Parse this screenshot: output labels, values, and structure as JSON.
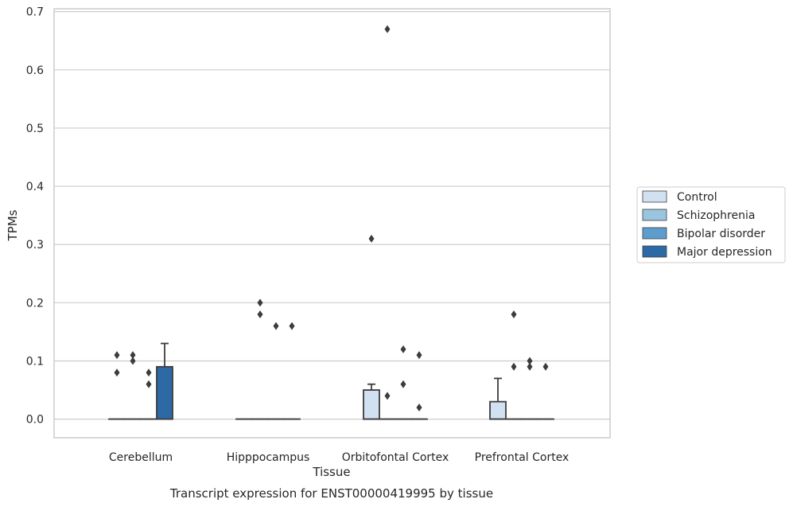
{
  "chart_data": {
    "type": "box",
    "title": "Transcript expression for ENST00000419995 by tissue",
    "xlabel": "Tissue",
    "ylabel": "TPMs",
    "ylim": [
      -0.032,
      0.705
    ],
    "yticks": [
      0.0,
      0.1,
      0.2,
      0.3,
      0.4,
      0.5,
      0.6,
      0.7
    ],
    "ytick_labels": [
      "0.0",
      "0.1",
      "0.2",
      "0.3",
      "0.4",
      "0.5",
      "0.6",
      "0.7"
    ],
    "grid": "horizontal",
    "legend_position": "right",
    "categories": [
      "Cerebellum",
      "Hipppocampus",
      "Orbitofontal Cortex",
      "Prefrontal Cortex"
    ],
    "series": [
      {
        "name": "Control",
        "color": "#d2e1f1",
        "boxes": [
          {
            "q1": 0.0,
            "median": 0.0,
            "q3": 0.0,
            "whisker_low": 0.0,
            "whisker_high": 0.0,
            "outliers": [
              0.08,
              0.11
            ]
          },
          {
            "q1": 0.0,
            "median": 0.0,
            "q3": 0.0,
            "whisker_low": 0.0,
            "whisker_high": 0.0,
            "outliers": []
          },
          {
            "q1": 0.0,
            "median": 0.0,
            "q3": 0.05,
            "whisker_low": 0.0,
            "whisker_high": 0.06,
            "outliers": [
              0.31
            ]
          },
          {
            "q1": 0.0,
            "median": 0.0,
            "q3": 0.03,
            "whisker_low": 0.0,
            "whisker_high": 0.07,
            "outliers": []
          }
        ]
      },
      {
        "name": "Schizophrenia",
        "color": "#9ac5de",
        "boxes": [
          {
            "q1": 0.0,
            "median": 0.0,
            "q3": 0.0,
            "whisker_low": 0.0,
            "whisker_high": 0.0,
            "outliers": [
              0.1,
              0.11
            ]
          },
          {
            "q1": 0.0,
            "median": 0.0,
            "q3": 0.0,
            "whisker_low": 0.0,
            "whisker_high": 0.0,
            "outliers": [
              0.18,
              0.2
            ]
          },
          {
            "q1": 0.0,
            "median": 0.0,
            "q3": 0.0,
            "whisker_low": 0.0,
            "whisker_high": 0.0,
            "outliers": [
              0.04,
              0.67
            ]
          },
          {
            "q1": 0.0,
            "median": 0.0,
            "q3": 0.0,
            "whisker_low": 0.0,
            "whisker_high": 0.0,
            "outliers": [
              0.09,
              0.18
            ]
          }
        ]
      },
      {
        "name": "Bipolar disorder",
        "color": "#5c9dcd",
        "boxes": [
          {
            "q1": 0.0,
            "median": 0.0,
            "q3": 0.0,
            "whisker_low": 0.0,
            "whisker_high": 0.0,
            "outliers": [
              0.06,
              0.08
            ]
          },
          {
            "q1": 0.0,
            "median": 0.0,
            "q3": 0.0,
            "whisker_low": 0.0,
            "whisker_high": 0.0,
            "outliers": [
              0.16
            ]
          },
          {
            "q1": 0.0,
            "median": 0.0,
            "q3": 0.0,
            "whisker_low": 0.0,
            "whisker_high": 0.0,
            "outliers": [
              0.06,
              0.12
            ]
          },
          {
            "q1": 0.0,
            "median": 0.0,
            "q3": 0.0,
            "whisker_low": 0.0,
            "whisker_high": 0.0,
            "outliers": [
              0.09,
              0.1
            ]
          }
        ]
      },
      {
        "name": "Major depression",
        "color": "#2c6aa6",
        "boxes": [
          {
            "q1": 0.0,
            "median": 0.0,
            "q3": 0.09,
            "whisker_low": 0.0,
            "whisker_high": 0.13,
            "outliers": []
          },
          {
            "q1": 0.0,
            "median": 0.0,
            "q3": 0.0,
            "whisker_low": 0.0,
            "whisker_high": 0.0,
            "outliers": [
              0.16
            ]
          },
          {
            "q1": 0.0,
            "median": 0.0,
            "q3": 0.0,
            "whisker_low": 0.0,
            "whisker_high": 0.0,
            "outliers": [
              0.02,
              0.11
            ]
          },
          {
            "q1": 0.0,
            "median": 0.0,
            "q3": 0.0,
            "whisker_low": 0.0,
            "whisker_high": 0.0,
            "outliers": [
              0.09
            ]
          }
        ]
      }
    ]
  }
}
